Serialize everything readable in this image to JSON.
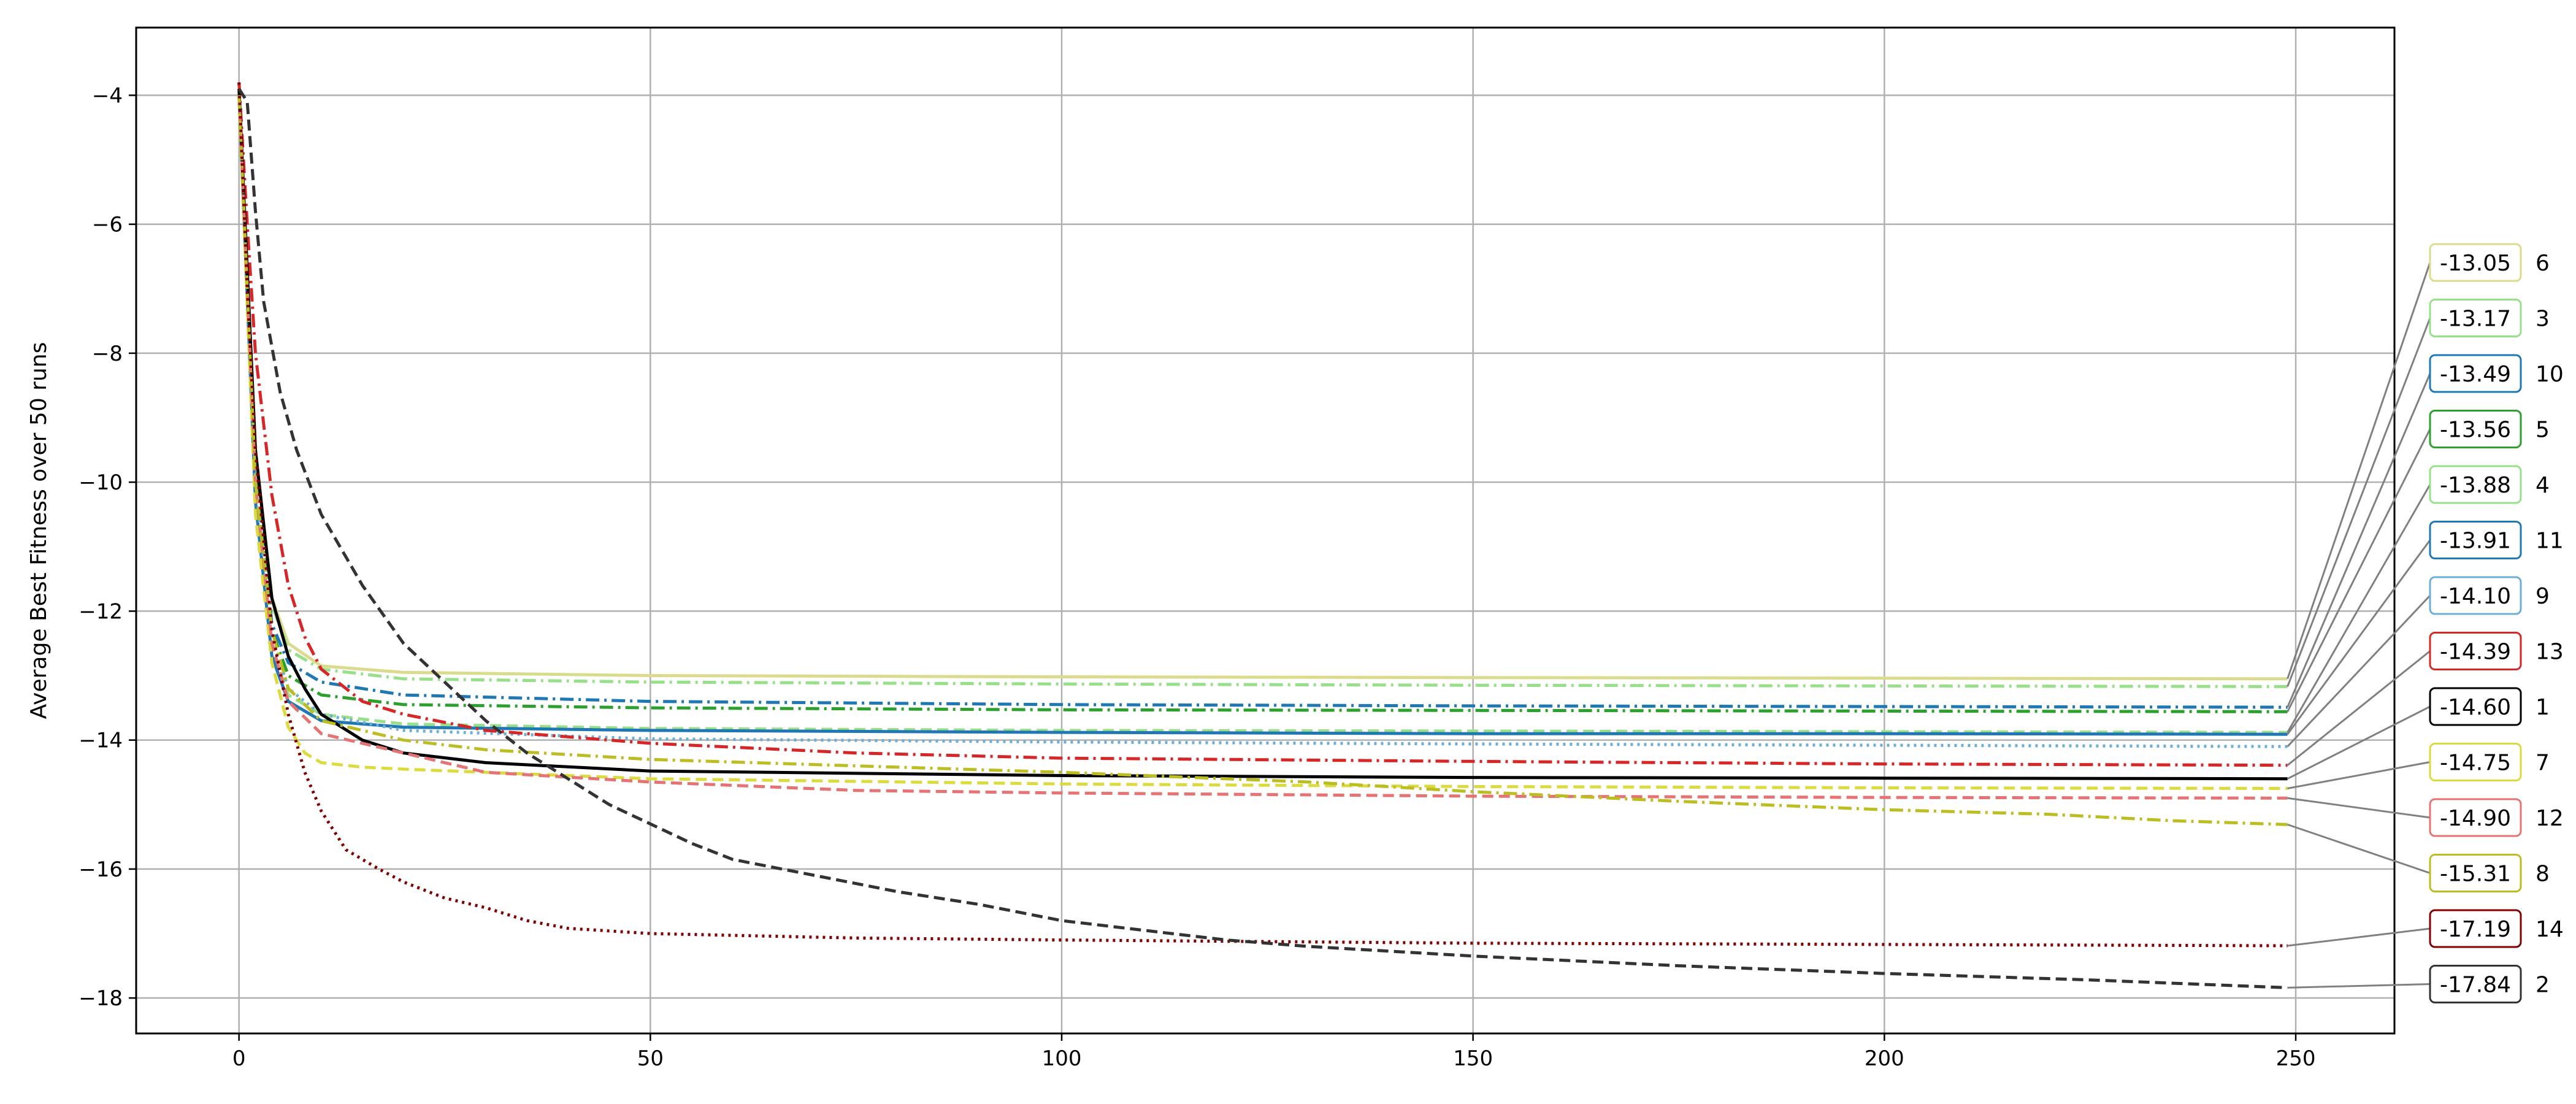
{
  "chart_data": {
    "type": "line",
    "title": "",
    "xlabel": "",
    "ylabel": "Average Best Fitness over 50 runs",
    "xlim": [
      -12.5,
      262
    ],
    "ylim": [
      -18.55,
      -2.95
    ],
    "xticks": [
      0,
      50,
      100,
      150,
      200,
      250
    ],
    "yticks": [
      -4,
      -6,
      -8,
      -10,
      -12,
      -14,
      -16,
      -18
    ],
    "x_tick_labels": [
      "0",
      "50",
      "100",
      "150",
      "200",
      "250"
    ],
    "y_tick_labels": [
      "−4",
      "−6",
      "−8",
      "−10",
      "−12",
      "−14",
      "−16",
      "−18"
    ],
    "grid": true,
    "legend": "end-of-line labels on right",
    "series": [
      {
        "id": "6",
        "final": -13.05,
        "final_label": "-13.05",
        "color": "#dbdb8d",
        "dash": "solid",
        "points": [
          [
            0,
            -4.0
          ],
          [
            2,
            -9.5
          ],
          [
            4,
            -11.8
          ],
          [
            6,
            -12.5
          ],
          [
            10,
            -12.85
          ],
          [
            20,
            -12.95
          ],
          [
            50,
            -13.0
          ],
          [
            100,
            -13.02
          ],
          [
            150,
            -13.03
          ],
          [
            200,
            -13.04
          ],
          [
            249,
            -13.05
          ]
        ]
      },
      {
        "id": "3",
        "final": -13.17,
        "final_label": "-13.17",
        "color": "#98df8a",
        "dash": "dashdot",
        "points": [
          [
            0,
            -4.0
          ],
          [
            2,
            -9.5
          ],
          [
            4,
            -11.9
          ],
          [
            6,
            -12.6
          ],
          [
            10,
            -12.9
          ],
          [
            20,
            -13.05
          ],
          [
            50,
            -13.1
          ],
          [
            100,
            -13.13
          ],
          [
            150,
            -13.15
          ],
          [
            200,
            -13.16
          ],
          [
            249,
            -13.17
          ]
        ]
      },
      {
        "id": "10",
        "final": -13.49,
        "final_label": "-13.49",
        "color": "#1f77b4",
        "dash": "dashdot",
        "points": [
          [
            0,
            -4.0
          ],
          [
            2,
            -9.8
          ],
          [
            4,
            -12.2
          ],
          [
            6,
            -12.8
          ],
          [
            10,
            -13.1
          ],
          [
            20,
            -13.3
          ],
          [
            50,
            -13.4
          ],
          [
            100,
            -13.45
          ],
          [
            150,
            -13.47
          ],
          [
            200,
            -13.48
          ],
          [
            249,
            -13.49
          ]
        ]
      },
      {
        "id": "5",
        "final": -13.56,
        "final_label": "-13.56",
        "color": "#2ca02c",
        "dash": "dashdot",
        "points": [
          [
            0,
            -4.0
          ],
          [
            2,
            -10.0
          ],
          [
            4,
            -12.3
          ],
          [
            6,
            -13.0
          ],
          [
            10,
            -13.3
          ],
          [
            20,
            -13.45
          ],
          [
            50,
            -13.5
          ],
          [
            100,
            -13.53
          ],
          [
            150,
            -13.54
          ],
          [
            200,
            -13.55
          ],
          [
            249,
            -13.56
          ]
        ]
      },
      {
        "id": "4",
        "final": -13.88,
        "final_label": "-13.88",
        "color": "#98df8a",
        "dash": "dashed",
        "points": [
          [
            0,
            -4.0
          ],
          [
            2,
            -10.2
          ],
          [
            4,
            -12.6
          ],
          [
            6,
            -13.3
          ],
          [
            10,
            -13.6
          ],
          [
            20,
            -13.75
          ],
          [
            50,
            -13.82
          ],
          [
            100,
            -13.85
          ],
          [
            150,
            -13.86
          ],
          [
            200,
            -13.87
          ],
          [
            249,
            -13.88
          ]
        ]
      },
      {
        "id": "11",
        "final": -13.91,
        "final_label": "-13.91",
        "color": "#1f77b4",
        "dash": "solid",
        "points": [
          [
            0,
            -4.0
          ],
          [
            2,
            -10.3
          ],
          [
            4,
            -12.7
          ],
          [
            6,
            -13.4
          ],
          [
            10,
            -13.7
          ],
          [
            20,
            -13.8
          ],
          [
            50,
            -13.85
          ],
          [
            100,
            -13.88
          ],
          [
            150,
            -13.9
          ],
          [
            200,
            -13.9
          ],
          [
            249,
            -13.91
          ]
        ]
      },
      {
        "id": "9",
        "final": -14.1,
        "final_label": "-14.10",
        "color": "#6baed6",
        "dash": "dotted",
        "points": [
          [
            0,
            -4.0
          ],
          [
            2,
            -10.0
          ],
          [
            4,
            -12.4
          ],
          [
            6,
            -13.2
          ],
          [
            10,
            -13.6
          ],
          [
            20,
            -13.85
          ],
          [
            50,
            -13.98
          ],
          [
            100,
            -14.03
          ],
          [
            150,
            -14.06
          ],
          [
            200,
            -14.08
          ],
          [
            249,
            -14.1
          ]
        ]
      },
      {
        "id": "13",
        "final": -14.39,
        "final_label": "-14.39",
        "color": "#d62728",
        "dash": "dashdot",
        "points": [
          [
            0,
            -3.8
          ],
          [
            1,
            -6.0
          ],
          [
            2,
            -8.0
          ],
          [
            4,
            -10.2
          ],
          [
            6,
            -11.6
          ],
          [
            8,
            -12.4
          ],
          [
            10,
            -12.9
          ],
          [
            15,
            -13.4
          ],
          [
            20,
            -13.6
          ],
          [
            30,
            -13.85
          ],
          [
            50,
            -14.05
          ],
          [
            75,
            -14.2
          ],
          [
            100,
            -14.28
          ],
          [
            150,
            -14.33
          ],
          [
            200,
            -14.37
          ],
          [
            249,
            -14.39
          ]
        ]
      },
      {
        "id": "1",
        "final": -14.6,
        "final_label": "-14.60",
        "color": "#000000",
        "dash": "solid",
        "points": [
          [
            0,
            -3.9
          ],
          [
            2,
            -9.5
          ],
          [
            4,
            -11.8
          ],
          [
            6,
            -12.7
          ],
          [
            8,
            -13.2
          ],
          [
            10,
            -13.6
          ],
          [
            15,
            -14.0
          ],
          [
            20,
            -14.2
          ],
          [
            30,
            -14.35
          ],
          [
            50,
            -14.48
          ],
          [
            100,
            -14.55
          ],
          [
            150,
            -14.58
          ],
          [
            200,
            -14.59
          ],
          [
            249,
            -14.6
          ]
        ]
      },
      {
        "id": "7",
        "final": -14.75,
        "final_label": "-14.75",
        "color": "#dbdb40",
        "dash": "dashed",
        "points": [
          [
            0,
            -4.0
          ],
          [
            2,
            -10.5
          ],
          [
            4,
            -12.8
          ],
          [
            6,
            -13.8
          ],
          [
            8,
            -14.2
          ],
          [
            10,
            -14.35
          ],
          [
            15,
            -14.42
          ],
          [
            20,
            -14.45
          ],
          [
            50,
            -14.6
          ],
          [
            100,
            -14.68
          ],
          [
            150,
            -14.72
          ],
          [
            200,
            -14.74
          ],
          [
            249,
            -14.75
          ]
        ]
      },
      {
        "id": "12",
        "final": -14.9,
        "final_label": "-14.90",
        "color": "#e57373",
        "dash": "dashed",
        "points": [
          [
            0,
            -4.0
          ],
          [
            2,
            -10.0
          ],
          [
            4,
            -12.5
          ],
          [
            6,
            -13.4
          ],
          [
            10,
            -13.9
          ],
          [
            20,
            -14.2
          ],
          [
            30,
            -14.5
          ],
          [
            50,
            -14.65
          ],
          [
            75,
            -14.78
          ],
          [
            100,
            -14.82
          ],
          [
            150,
            -14.87
          ],
          [
            200,
            -14.89
          ],
          [
            249,
            -14.9
          ]
        ]
      },
      {
        "id": "8",
        "final": -15.31,
        "final_label": "-15.31",
        "color": "#bcbd22",
        "dash": "dashdot",
        "points": [
          [
            0,
            -4.0
          ],
          [
            2,
            -10.0
          ],
          [
            4,
            -12.3
          ],
          [
            6,
            -13.2
          ],
          [
            10,
            -13.7
          ],
          [
            20,
            -14.0
          ],
          [
            30,
            -14.15
          ],
          [
            50,
            -14.3
          ],
          [
            75,
            -14.4
          ],
          [
            100,
            -14.5
          ],
          [
            130,
            -14.65
          ],
          [
            150,
            -14.8
          ],
          [
            175,
            -14.95
          ],
          [
            200,
            -15.08
          ],
          [
            220,
            -15.15
          ],
          [
            235,
            -15.25
          ],
          [
            249,
            -15.31
          ]
        ]
      },
      {
        "id": "14",
        "final": -17.19,
        "final_label": "-17.19",
        "color": "#800000",
        "dash": "dotted",
        "points": [
          [
            0,
            -3.8
          ],
          [
            1,
            -7.0
          ],
          [
            2,
            -9.5
          ],
          [
            4,
            -12.3
          ],
          [
            6,
            -13.6
          ],
          [
            8,
            -14.5
          ],
          [
            10,
            -15.1
          ],
          [
            13,
            -15.7
          ],
          [
            17,
            -16.0
          ],
          [
            20,
            -16.2
          ],
          [
            25,
            -16.45
          ],
          [
            30,
            -16.6
          ],
          [
            35,
            -16.8
          ],
          [
            40,
            -16.92
          ],
          [
            50,
            -17.0
          ],
          [
            75,
            -17.07
          ],
          [
            100,
            -17.1
          ],
          [
            150,
            -17.15
          ],
          [
            200,
            -17.17
          ],
          [
            249,
            -17.19
          ]
        ]
      },
      {
        "id": "2",
        "final": -17.84,
        "final_label": "-17.84",
        "color": "#333333",
        "dash": "dashed",
        "points": [
          [
            0,
            -3.9
          ],
          [
            1,
            -4.1
          ],
          [
            2,
            -5.8
          ],
          [
            3,
            -7.2
          ],
          [
            5,
            -8.6
          ],
          [
            7,
            -9.5
          ],
          [
            10,
            -10.5
          ],
          [
            15,
            -11.6
          ],
          [
            20,
            -12.5
          ],
          [
            25,
            -13.1
          ],
          [
            30,
            -13.7
          ],
          [
            35,
            -14.2
          ],
          [
            40,
            -14.6
          ],
          [
            45,
            -15.0
          ],
          [
            50,
            -15.3
          ],
          [
            55,
            -15.6
          ],
          [
            60,
            -15.85
          ],
          [
            70,
            -16.1
          ],
          [
            80,
            -16.35
          ],
          [
            90,
            -16.55
          ],
          [
            100,
            -16.8
          ],
          [
            110,
            -16.95
          ],
          [
            120,
            -17.1
          ],
          [
            130,
            -17.2
          ],
          [
            150,
            -17.35
          ],
          [
            175,
            -17.5
          ],
          [
            200,
            -17.62
          ],
          [
            225,
            -17.72
          ],
          [
            249,
            -17.84
          ]
        ]
      }
    ]
  }
}
